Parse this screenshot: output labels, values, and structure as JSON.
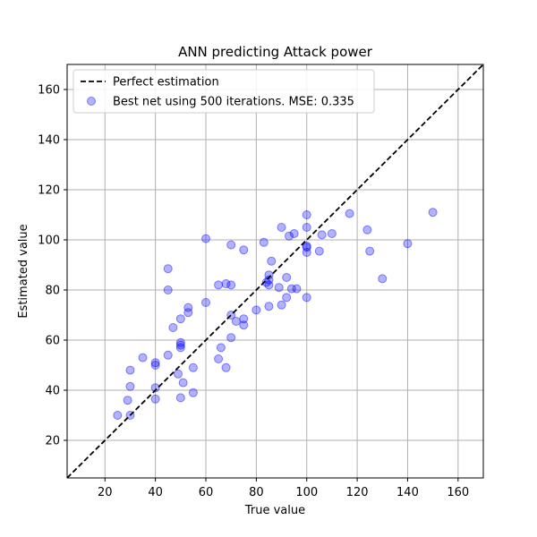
{
  "chart_data": {
    "type": "scatter",
    "title": "ANN predicting Attack power",
    "xlabel": "True value",
    "ylabel": "Estimated value",
    "xlim": [
      5,
      170
    ],
    "ylim": [
      5,
      170
    ],
    "xticks": [
      20,
      40,
      60,
      80,
      100,
      120,
      140,
      160
    ],
    "yticks": [
      20,
      40,
      60,
      80,
      100,
      120,
      140,
      160
    ],
    "grid": true,
    "legend_position": "top-left",
    "series": [
      {
        "name": "Perfect estimation",
        "kind": "line",
        "style": "dashed",
        "color": "#000000",
        "x": [
          5,
          170
        ],
        "y": [
          5,
          170
        ]
      },
      {
        "name": "Best net using 500 iterations. MSE: 0.335",
        "kind": "scatter",
        "color": "#0000ff",
        "opacity": 0.3,
        "points": [
          [
            25,
            30
          ],
          [
            30,
            30
          ],
          [
            29,
            36
          ],
          [
            30,
            41.5
          ],
          [
            30,
            48
          ],
          [
            35,
            53
          ],
          [
            40,
            50
          ],
          [
            40,
            51
          ],
          [
            40,
            41
          ],
          [
            40,
            36.5
          ],
          [
            45,
            54
          ],
          [
            45,
            80
          ],
          [
            45,
            88.5
          ],
          [
            47,
            65
          ],
          [
            49,
            46.5
          ],
          [
            50,
            37
          ],
          [
            50,
            57
          ],
          [
            50,
            58
          ],
          [
            50,
            59
          ],
          [
            50,
            68.5
          ],
          [
            51,
            43
          ],
          [
            53,
            71
          ],
          [
            53,
            73
          ],
          [
            55,
            49
          ],
          [
            55,
            39
          ],
          [
            60,
            75
          ],
          [
            60,
            100.5
          ],
          [
            65,
            52.5
          ],
          [
            65,
            82
          ],
          [
            66,
            57
          ],
          [
            68,
            49
          ],
          [
            68,
            82.5
          ],
          [
            70,
            82
          ],
          [
            70,
            98
          ],
          [
            70,
            70
          ],
          [
            70,
            61
          ],
          [
            72,
            67.5
          ],
          [
            75,
            68.5
          ],
          [
            75,
            66
          ],
          [
            75,
            96
          ],
          [
            80,
            72
          ],
          [
            83,
            99
          ],
          [
            84,
            83
          ],
          [
            85,
            82
          ],
          [
            85,
            84
          ],
          [
            85,
            86
          ],
          [
            85,
            73.5
          ],
          [
            86,
            91.5
          ],
          [
            89,
            81
          ],
          [
            90,
            74
          ],
          [
            90,
            105
          ],
          [
            92,
            85
          ],
          [
            92,
            77
          ],
          [
            93,
            101.5
          ],
          [
            94,
            80.5
          ],
          [
            95,
            102.5
          ],
          [
            96,
            80.5
          ],
          [
            100,
            77
          ],
          [
            100,
            95
          ],
          [
            100,
            97
          ],
          [
            100,
            97.5
          ],
          [
            100,
            105
          ],
          [
            100,
            110
          ],
          [
            105,
            95.5
          ],
          [
            106,
            102
          ],
          [
            110,
            102.5
          ],
          [
            117,
            110.5
          ],
          [
            124,
            104
          ],
          [
            125,
            95.5
          ],
          [
            130,
            84.5
          ],
          [
            140,
            98.5
          ],
          [
            150,
            111
          ]
        ]
      }
    ]
  }
}
